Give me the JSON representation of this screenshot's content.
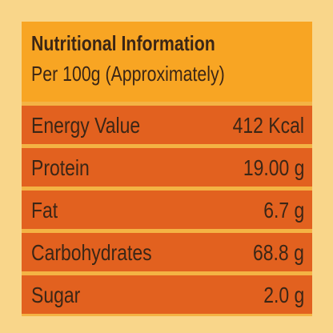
{
  "header": {
    "title": "Nutritional Information",
    "subtitle": "Per 100g (Approximately)"
  },
  "table": {
    "rows": [
      [
        "Energy Value",
        "412 Kcal"
      ],
      [
        "Protein",
        "19.00 g"
      ],
      [
        "Fat",
        "6.7 g"
      ],
      [
        "Carbohydrates",
        "68.8 g"
      ],
      [
        "Sugar",
        "2.0 g"
      ]
    ]
  }
}
